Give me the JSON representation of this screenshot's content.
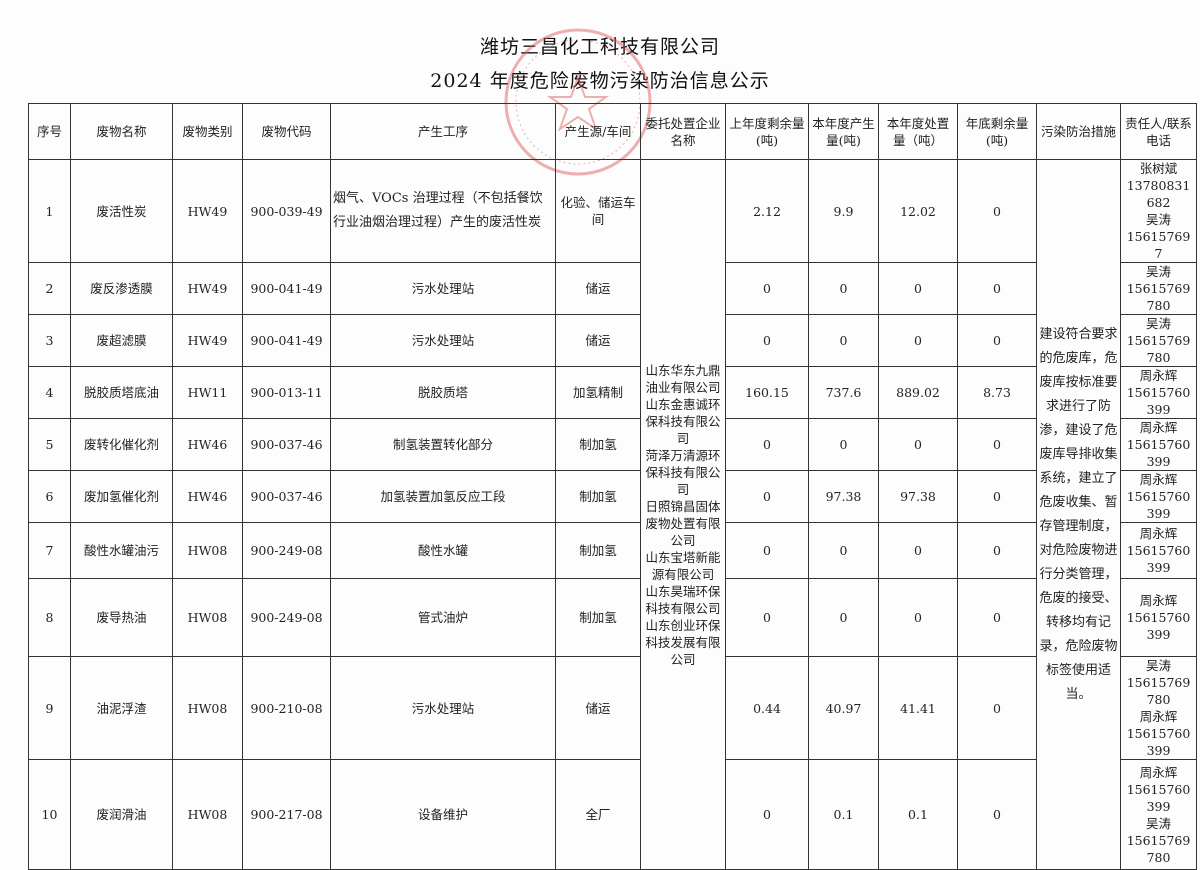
{
  "document": {
    "company": "潍坊三昌化工科技有限公司",
    "title": "2024 年度危险废物污染防治信息公示"
  },
  "stamp": {
    "color": "#d9534f",
    "text": "370727101742"
  },
  "headers": [
    "序号",
    "废物名称",
    "废物类别",
    "废物代码",
    "产生工序",
    "产生源/车间",
    "委托处置企业名称",
    "上年度剩余量(吨)",
    "本年度产生量(吨)",
    "本年度处置量（吨）",
    "年底剩余量(吨)",
    "污染防治措施",
    "责任人/联系电话"
  ],
  "disposal_companies": "山东华东九鼎油业有限公司\n山东金惠诚环保科技有限公司\n菏泽万清源环保科技有限公司\n日照锦昌固体废物处置有限公司\n山东宝塔新能源有限公司\n山东昊瑞环保科技有限公司\n山东创业环保科技发展有限公司",
  "measures": "建设符合要求的危废库，危废库按标准要求进行了防渗，建设了危废库导排收集系统，建立了危废收集、暂存管理制度，对危险废物进行分类管理，危废的接受、转移均有记录，危险废物标签使用适当。",
  "rows": [
    {
      "no": "1",
      "name": "废活性炭",
      "category": "HW49",
      "code": "900-039-49",
      "process": "烟气、VOCs 治理过程（不包括餐饮行业油烟治理过程）产生的废活性炭",
      "source": "化验、储运车间",
      "prev": "2.12",
      "produced": "9.9",
      "disposed": "12.02",
      "remaining": "0",
      "contact": "张树斌\n13780831682\n吴涛\n156157697"
    },
    {
      "no": "2",
      "name": "废反渗透膜",
      "category": "HW49",
      "code": "900-041-49",
      "process": "污水处理站",
      "source": "储运",
      "prev": "0",
      "produced": "0",
      "disposed": "0",
      "remaining": "0",
      "contact": "吴涛\n15615769780"
    },
    {
      "no": "3",
      "name": "废超滤膜",
      "category": "HW49",
      "code": "900-041-49",
      "process": "污水处理站",
      "source": "储运",
      "prev": "0",
      "produced": "0",
      "disposed": "0",
      "remaining": "0",
      "contact": "吴涛\n15615769780"
    },
    {
      "no": "4",
      "name": "脱胶质塔底油",
      "category": "HW11",
      "code": "900-013-11",
      "process": "脱胶质塔",
      "source": "加氢精制",
      "prev": "160.15",
      "produced": "737.6",
      "disposed": "889.02",
      "remaining": "8.73",
      "contact": "周永辉\n15615760399"
    },
    {
      "no": "5",
      "name": "废转化催化剂",
      "category": "HW46",
      "code": "900-037-46",
      "process": "制氢装置转化部分",
      "source": "制加氢",
      "prev": "0",
      "produced": "0",
      "disposed": "0",
      "remaining": "0",
      "contact": "周永辉\n15615760399"
    },
    {
      "no": "6",
      "name": "废加氢催化剂",
      "category": "HW46",
      "code": "900-037-46",
      "process": "加氢装置加氢反应工段",
      "source": "制加氢",
      "prev": "0",
      "produced": "97.38",
      "disposed": "97.38",
      "remaining": "0",
      "contact": "周永辉\n15615760399"
    },
    {
      "no": "7",
      "name": "酸性水罐油污",
      "category": "HW08",
      "code": "900-249-08",
      "process": "酸性水罐",
      "source": "制加氢",
      "prev": "0",
      "produced": "0",
      "disposed": "0",
      "remaining": "0",
      "contact": "周永辉\n15615760399"
    },
    {
      "no": "8",
      "name": "废导热油",
      "category": "HW08",
      "code": "900-249-08",
      "process": "管式油炉",
      "source": "制加氢",
      "prev": "0",
      "produced": "0",
      "disposed": "0",
      "remaining": "0",
      "contact": "周永辉\n15615760399"
    },
    {
      "no": "9",
      "name": "油泥浮渣",
      "category": "HW08",
      "code": "900-210-08",
      "process": "污水处理站",
      "source": "储运",
      "prev": "0.44",
      "produced": "40.97",
      "disposed": "41.41",
      "remaining": "0",
      "contact": "吴涛\n15615769780\n周永辉\n15615760399"
    },
    {
      "no": "10",
      "name": "废润滑油",
      "category": "HW08",
      "code": "900-217-08",
      "process": "设备维护",
      "source": "全厂",
      "prev": "0",
      "produced": "0.1",
      "disposed": "0.1",
      "remaining": "0",
      "contact": "周永辉\n15615760399\n吴涛\n15615769780"
    }
  ]
}
